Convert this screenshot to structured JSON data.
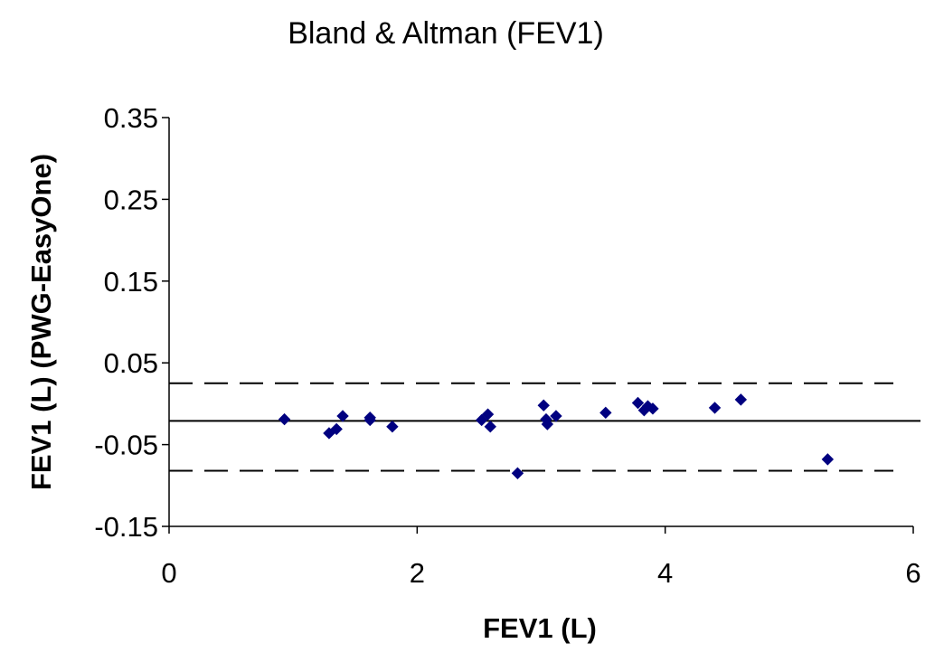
{
  "chart_data": {
    "type": "scatter",
    "title": "Bland & Altman (FEV1)",
    "xlabel": "FEV1 (L)",
    "ylabel": "FEV1 (L) (PWG-EasyOne)",
    "xlim": [
      0,
      6
    ],
    "ylim": [
      -0.15,
      0.35
    ],
    "x_ticks": [
      "0",
      "2",
      "4",
      "6"
    ],
    "y_ticks": [
      "0.35",
      "0.25",
      "0.15",
      "0.05",
      "-0.05",
      "-0.15"
    ],
    "grid": false,
    "marker_color": "#000080",
    "points": [
      {
        "x": 0.93,
        "y": -0.019
      },
      {
        "x": 1.29,
        "y": -0.036
      },
      {
        "x": 1.35,
        "y": -0.031
      },
      {
        "x": 1.4,
        "y": -0.015
      },
      {
        "x": 1.62,
        "y": -0.017
      },
      {
        "x": 1.62,
        "y": -0.02
      },
      {
        "x": 1.8,
        "y": -0.028
      },
      {
        "x": 2.52,
        "y": -0.02
      },
      {
        "x": 2.57,
        "y": -0.013
      },
      {
        "x": 2.59,
        "y": -0.028
      },
      {
        "x": 2.81,
        "y": -0.085
      },
      {
        "x": 3.02,
        "y": -0.002
      },
      {
        "x": 3.04,
        "y": -0.019
      },
      {
        "x": 3.05,
        "y": -0.025
      },
      {
        "x": 3.12,
        "y": -0.015
      },
      {
        "x": 3.52,
        "y": -0.011
      },
      {
        "x": 3.78,
        "y": 0.001
      },
      {
        "x": 3.83,
        "y": -0.008
      },
      {
        "x": 3.86,
        "y": -0.003
      },
      {
        "x": 3.9,
        "y": -0.006
      },
      {
        "x": 4.4,
        "y": -0.005
      },
      {
        "x": 4.61,
        "y": 0.005
      },
      {
        "x": 5.31,
        "y": -0.068
      }
    ],
    "reference_lines": [
      {
        "style": "solid",
        "y": -0.021
      },
      {
        "style": "dashed",
        "y": 0.025
      },
      {
        "style": "dashed",
        "y": -0.082
      }
    ]
  }
}
